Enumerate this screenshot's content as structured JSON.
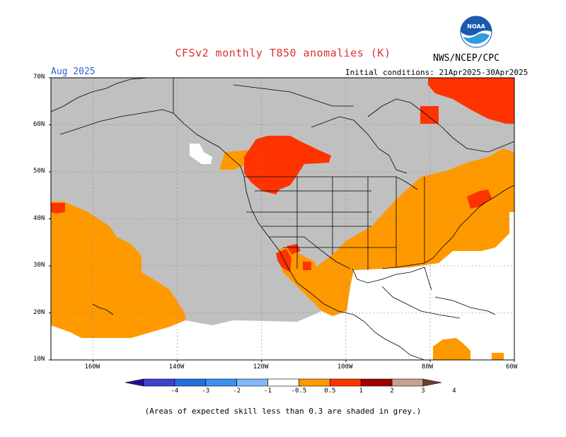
{
  "header": {
    "title": "CFSv2 monthly T850 anomalies (K)",
    "agency": "NWS/NCEP/CPC",
    "logo_text": "NOAA",
    "month": "Aug 2025",
    "initial_conditions": "Initial conditions: 21Apr2025-30Apr2025"
  },
  "map": {
    "lon_range": [
      -170,
      -60
    ],
    "lat_range": [
      10,
      70
    ],
    "lat_ticks": [
      {
        "v": 70,
        "label": "70N"
      },
      {
        "v": 60,
        "label": "60N"
      },
      {
        "v": 50,
        "label": "50N"
      },
      {
        "v": 40,
        "label": "40N"
      },
      {
        "v": 30,
        "label": "30N"
      },
      {
        "v": 20,
        "label": "20N"
      },
      {
        "v": 10,
        "label": "10N"
      }
    ],
    "lon_ticks": [
      {
        "v": -160,
        "label": "160W"
      },
      {
        "v": -140,
        "label": "140W"
      },
      {
        "v": -120,
        "label": "120W"
      },
      {
        "v": -100,
        "label": "100W"
      },
      {
        "v": -80,
        "label": "80W"
      },
      {
        "v": -60,
        "label": "60W"
      }
    ],
    "colors": {
      "low_skill_grey": "#c0c0c0",
      "anom_0_5_to_1": "#ff9900",
      "anom_1_to_2": "#ff3300",
      "coast": "#000000"
    }
  },
  "colorbar": {
    "labels": [
      "-4",
      "-3",
      "-2",
      "-1",
      "-0.5",
      "0.5",
      "1",
      "2",
      "3",
      "4"
    ],
    "colors": [
      "#2a0a9a",
      "#4040d0",
      "#2070e0",
      "#3a90f0",
      "#80b8f8",
      "#ffffff",
      "#ff9900",
      "#ff3300",
      "#a00000",
      "#c8a090",
      "#6a4030"
    ]
  },
  "footnote": "(Areas of expected skill less than 0.3 are shaded in grey.)"
}
